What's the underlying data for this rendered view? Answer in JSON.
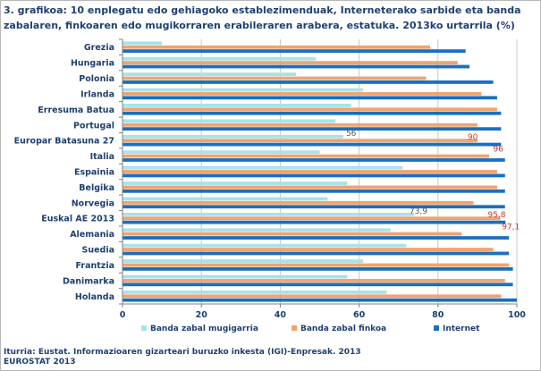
{
  "title": "3. grafikoa: 10 enplegatu edo gehiagoko establezimenduak, Interneterako sarbide eta banda zabalaren, finkoaren edo mugikorraren erabileraren arabera, estatuka. 2013ko urtarrila (%)",
  "source_line1": "Iturria: Eustat. Informazioaren gizarteari buruzko inkesta (IGI)-Enpresak. 2013",
  "source_line2": "EUROSTAT 2013",
  "colors": {
    "mobile": "#a6e3ea",
    "fixed": "#f2a36c",
    "internet": "#1a6fbf",
    "text": "#1f3f70",
    "label": "#c0392b"
  },
  "chart_data": {
    "type": "bar",
    "orientation": "horizontal",
    "categories": [
      "Grezia",
      "Hungaria",
      "Polonia",
      "Irlanda",
      "Erresuma Batua",
      "Portugal",
      "Europar Batasuna 27",
      "Italia",
      "Espainia",
      "Belgika",
      "Norvegia",
      "Euskal AE 2013",
      "Alemania",
      "Suedia",
      "Frantzia",
      "Danimarka",
      "Holanda"
    ],
    "series": [
      {
        "name": "Banda zabal mugigarria",
        "color": "#a6e3ea",
        "values": [
          10,
          49,
          44,
          61,
          58,
          54,
          56,
          50,
          71,
          57,
          52,
          73.9,
          68,
          72,
          61,
          57,
          67
        ]
      },
      {
        "name": "Banda zabal finkoa",
        "color": "#f2a36c",
        "values": [
          78,
          85,
          77,
          91,
          95,
          90,
          90,
          93,
          95,
          95,
          89,
          95.8,
          86,
          94,
          98,
          97,
          96
        ]
      },
      {
        "name": "Internet",
        "color": "#1a6fbf",
        "values": [
          87,
          88,
          94,
          95,
          96,
          96,
          96,
          97,
          97,
          97,
          97,
          97.1,
          98,
          98,
          99,
          99,
          100
        ]
      }
    ],
    "data_labels": [
      {
        "category": "Europar Batasuna 27",
        "series": "Banda zabal mugigarria",
        "text": "56"
      },
      {
        "category": "Europar Batasuna 27",
        "series": "Banda zabal finkoa",
        "text": "90"
      },
      {
        "category": "Europar Batasuna 27",
        "series": "Internet",
        "text": "96"
      },
      {
        "category": "Euskal AE 2013",
        "series": "Banda zabal mugigarria",
        "text": "73,9"
      },
      {
        "category": "Euskal AE 2013",
        "series": "Banda zabal finkoa",
        "text": "95,8"
      },
      {
        "category": "Euskal AE 2013",
        "series": "Internet",
        "text": "97,1"
      }
    ],
    "xlim": [
      0,
      100
    ],
    "xticks": [
      "0",
      "20",
      "40",
      "60",
      "80",
      "100"
    ],
    "grid": true,
    "legend": [
      "Banda zabal mugigarria",
      "Banda zabal finkoa",
      "Internet"
    ],
    "legend_position": "bottom"
  }
}
